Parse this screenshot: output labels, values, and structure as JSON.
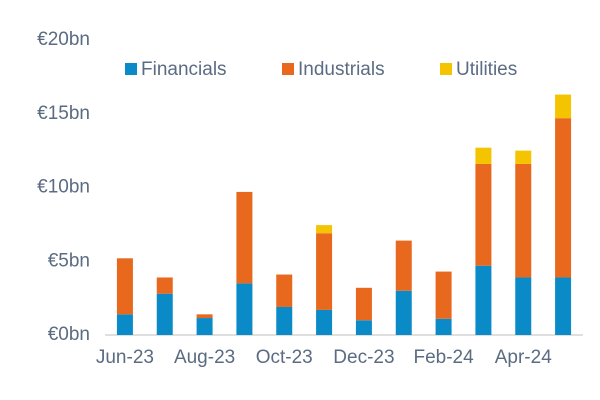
{
  "chart_data": {
    "type": "stacked-bar",
    "categories": [
      "Jun-23",
      null,
      "Aug-23",
      null,
      "Oct-23",
      null,
      "Dec-23",
      null,
      "Feb-24",
      null,
      "Apr-24",
      null
    ],
    "series": [
      {
        "name": "Financials",
        "color": "#0a8bc8",
        "values": [
          1.4,
          2.8,
          1.15,
          3.5,
          1.9,
          1.7,
          1.0,
          3.0,
          1.1,
          4.7,
          3.9,
          3.9
        ]
      },
      {
        "name": "Industrials",
        "color": "#e8681e",
        "values": [
          3.8,
          1.1,
          0.25,
          6.2,
          2.2,
          5.2,
          2.2,
          3.4,
          3.2,
          6.9,
          7.7,
          10.8
        ]
      },
      {
        "name": "Utilities",
        "color": "#f5c400",
        "values": [
          0,
          0,
          0,
          0,
          0,
          0.55,
          0,
          0,
          0,
          1.1,
          0.9,
          1.6
        ]
      }
    ],
    "ylim": [
      0,
      20
    ],
    "yticks": [
      {
        "value": 0,
        "label": "€0bn"
      },
      {
        "value": 5,
        "label": "€5bn"
      },
      {
        "value": 10,
        "label": "€10bn"
      },
      {
        "value": 15,
        "label": "€15bn"
      },
      {
        "value": 20,
        "label": "€20bn"
      }
    ],
    "grid": false
  }
}
